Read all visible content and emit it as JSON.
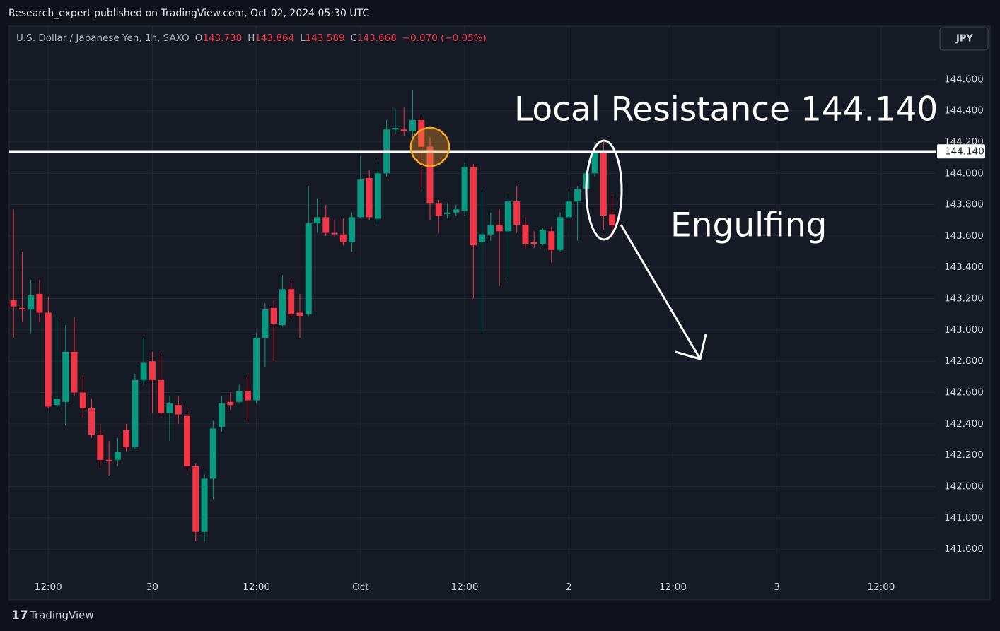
{
  "header": {
    "publisher": "Research_expert published on TradingView.com, Oct 02, 2024 05:30 UTC"
  },
  "legend": {
    "symbol": "U.S. Dollar / Japanese Yen, 1h, SAXO",
    "o_label": "O",
    "o": "143.738",
    "h_label": "H",
    "h": "143.864",
    "l_label": "L",
    "l": "143.589",
    "c_label": "C",
    "c": "143.668",
    "change": "−0.070 (−0.05%)"
  },
  "currency_button": "JPY",
  "footer": {
    "brand": "TradingView"
  },
  "chart_data": {
    "type": "candlestick",
    "up_color": "#089981",
    "down_color": "#f23645",
    "grid": true,
    "xlim": [
      -0.5,
      106.2
    ],
    "xticks": [
      {
        "value": 4,
        "label": "12:00"
      },
      {
        "value": 16,
        "label": "30"
      },
      {
        "value": 28,
        "label": "12:00"
      },
      {
        "value": 40,
        "label": "Oct"
      },
      {
        "value": 52,
        "label": "12:00"
      },
      {
        "value": 64,
        "label": "2"
      },
      {
        "value": 76,
        "label": "12:00"
      },
      {
        "value": 88,
        "label": "3"
      },
      {
        "value": 100,
        "label": "12:00"
      }
    ],
    "ylim": [
      141.28,
      144.94
    ],
    "yticks": [
      {
        "value": 141.6,
        "label": "141.600"
      },
      {
        "value": 141.8,
        "label": "141.800"
      },
      {
        "value": 142,
        "label": "142.000"
      },
      {
        "value": 142.2,
        "label": "142.200"
      },
      {
        "value": 142.4,
        "label": "142.400"
      },
      {
        "value": 142.6,
        "label": "142.600"
      },
      {
        "value": 142.8,
        "label": "142.800"
      },
      {
        "value": 143,
        "label": "143.000"
      },
      {
        "value": 143.2,
        "label": "143.200"
      },
      {
        "value": 143.4,
        "label": "143.400"
      },
      {
        "value": 143.6,
        "label": "143.600"
      },
      {
        "value": 143.8,
        "label": "143.800"
      },
      {
        "value": 144,
        "label": "144.000"
      },
      {
        "value": 144.2,
        "label": "144.200"
      },
      {
        "value": 144.4,
        "label": "144.400"
      },
      {
        "value": 144.6,
        "label": "144.600"
      }
    ],
    "x": [
      0,
      1,
      2,
      3,
      4,
      5,
      6,
      7,
      8,
      9,
      10,
      11,
      12,
      13,
      14,
      15,
      16,
      17,
      18,
      19,
      20,
      21,
      22,
      23,
      24,
      25,
      26,
      27,
      28,
      29,
      30,
      31,
      32,
      33,
      34,
      35,
      36,
      37,
      38,
      39,
      40,
      41,
      42,
      43,
      44,
      45,
      46,
      47,
      48,
      49,
      50,
      51,
      52,
      53,
      54,
      55,
      56,
      57,
      58,
      59,
      60,
      61,
      62,
      63,
      64,
      65,
      66,
      67,
      68,
      69
    ],
    "open": [
      143.19,
      143.14,
      143.13,
      143.23,
      143.11,
      142.52,
      142.54,
      142.86,
      142.6,
      142.5,
      142.33,
      142.17,
      142.17,
      142.36,
      142.25,
      142.68,
      142.8,
      142.68,
      142.47,
      142.52,
      142.45,
      142.13,
      141.71,
      142.05,
      142.38,
      142.54,
      142.54,
      142.61,
      142.55,
      142.95,
      143.14,
      143.03,
      143.26,
      143.11,
      143.1,
      143.68,
      143.72,
      143.62,
      143.61,
      143.56,
      143.72,
      143.97,
      143.71,
      144.0,
      144.28,
      144.28,
      144.27,
      144.34,
      144.17,
      143.81,
      143.74,
      143.75,
      143.76,
      144.04,
      143.56,
      143.61,
      143.67,
      143.63,
      143.82,
      143.67,
      143.56,
      143.55,
      143.63,
      143.51,
      143.72,
      143.82,
      143.9,
      144.0,
      144.14,
      143.738
    ],
    "high": [
      143.77,
      143.5,
      143.32,
      143.32,
      143.21,
      143.08,
      143.03,
      143.08,
      142.71,
      142.56,
      142.4,
      142.29,
      142.31,
      142.4,
      142.72,
      142.95,
      142.86,
      142.85,
      142.58,
      142.58,
      142.49,
      142.15,
      142.08,
      142.42,
      142.58,
      142.6,
      142.65,
      142.71,
      142.98,
      143.17,
      143.19,
      143.35,
      143.32,
      143.23,
      143.92,
      143.84,
      143.8,
      143.7,
      143.71,
      143.75,
      144.11,
      144.02,
      144.07,
      144.34,
      144.41,
      144.42,
      144.53,
      144.36,
      144.23,
      143.83,
      143.81,
      143.8,
      144.07,
      144.06,
      143.89,
      143.75,
      143.77,
      143.86,
      143.92,
      143.72,
      143.63,
      143.65,
      143.66,
      143.75,
      143.89,
      143.92,
      144.02,
      144.2,
      144.2,
      143.864
    ],
    "low": [
      142.95,
      143.05,
      142.98,
      143.05,
      142.5,
      142.5,
      142.39,
      142.58,
      142.44,
      142.31,
      142.13,
      142.07,
      142.13,
      142.22,
      142.24,
      142.65,
      142.47,
      142.44,
      142.29,
      142.4,
      142.09,
      141.65,
      141.65,
      141.92,
      142.35,
      142.49,
      142.53,
      142.41,
      142.53,
      142.76,
      142.8,
      143.02,
      143.08,
      142.95,
      143.09,
      143.62,
      143.6,
      143.59,
      143.54,
      143.5,
      143.71,
      143.7,
      143.67,
      143.98,
      144.25,
      144.24,
      144.23,
      143.89,
      143.7,
      143.62,
      143.71,
      143.73,
      143.73,
      143.2,
      142.98,
      143.57,
      143.28,
      143.32,
      143.62,
      143.52,
      143.52,
      143.54,
      143.43,
      143.5,
      143.71,
      143.57,
      143.88,
      143.98,
      143.64,
      143.589
    ],
    "close": [
      143.15,
      143.13,
      143.22,
      143.11,
      142.51,
      142.56,
      142.86,
      142.6,
      142.5,
      142.33,
      142.17,
      142.16,
      142.22,
      142.25,
      142.68,
      142.79,
      142.68,
      142.47,
      142.53,
      142.46,
      142.13,
      141.71,
      142.05,
      142.37,
      142.53,
      142.52,
      142.61,
      142.55,
      142.95,
      143.13,
      143.04,
      143.26,
      143.1,
      143.09,
      143.68,
      143.72,
      143.62,
      143.61,
      143.56,
      143.72,
      143.96,
      143.72,
      144.0,
      144.28,
      144.29,
      144.27,
      144.34,
      144.17,
      143.81,
      143.73,
      143.75,
      143.77,
      144.04,
      143.54,
      143.61,
      143.67,
      143.63,
      143.82,
      143.67,
      143.55,
      143.55,
      143.64,
      143.51,
      143.72,
      143.82,
      143.9,
      144.0,
      144.14,
      143.73,
      143.668
    ],
    "resistance": {
      "value": 144.14,
      "label": "144.140"
    },
    "annotations": {
      "resistance": "Local Resistance 144.140",
      "pattern": "Engulfing"
    }
  }
}
